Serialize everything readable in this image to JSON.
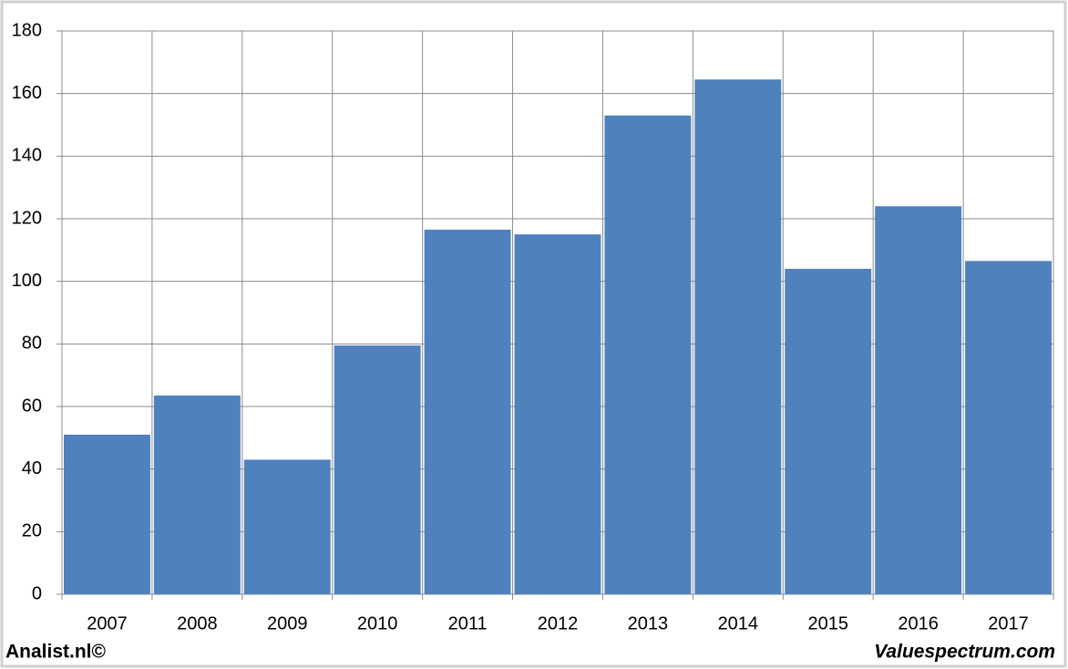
{
  "chart_data": {
    "type": "bar",
    "categories": [
      "2007",
      "2008",
      "2009",
      "2010",
      "2011",
      "2012",
      "2013",
      "2014",
      "2015",
      "2016",
      "2017"
    ],
    "values": [
      51,
      63.5,
      43,
      79.5,
      116.5,
      115,
      153,
      164.5,
      104,
      124,
      106.5
    ],
    "color": "#4f81bd",
    "ylim": [
      0,
      180
    ],
    "yticks": [
      0,
      20,
      40,
      60,
      80,
      100,
      120,
      140,
      160,
      180
    ],
    "grid": true,
    "footer_left": "Analist.nl©",
    "footer_right": "Valuespectrum.com"
  }
}
